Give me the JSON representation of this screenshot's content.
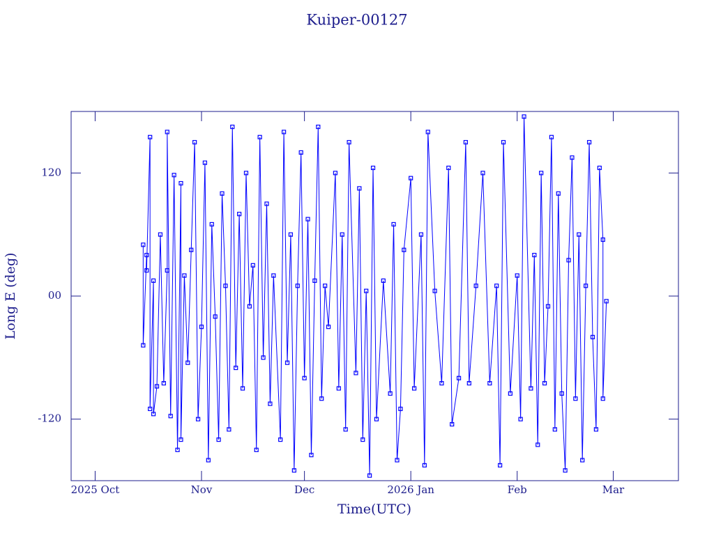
{
  "chart_data": {
    "type": "line",
    "title": "Kuiper-00127",
    "xlabel": "Time(UTC)",
    "ylabel": "Long E (deg)",
    "xlim": [
      "2025-09-24",
      "2026-03-20"
    ],
    "xticks": [
      {
        "value": "2025-10-01",
        "label": "2025 Oct"
      },
      {
        "value": "2025-11-01",
        "label": "Nov"
      },
      {
        "value": "2025-12-01",
        "label": "Dec"
      },
      {
        "value": "2026-01-01",
        "label": "2026 Jan"
      },
      {
        "value": "2026-02-01",
        "label": "Feb"
      },
      {
        "value": "2026-03-01",
        "label": "Mar"
      }
    ],
    "ylim": [
      -180,
      180
    ],
    "yticks": [
      -120,
      {
        "value": 0,
        "label": "00"
      },
      120
    ],
    "line_color": "#0000ff",
    "marker_color": "#0000ff",
    "x": [
      "2025-10-15",
      "2025-10-15",
      "2025-10-16",
      "2025-10-16",
      "2025-10-17",
      "2025-10-17",
      "2025-10-18",
      "2025-10-18",
      "2025-10-19",
      "2025-10-20",
      "2025-10-21",
      "2025-10-22",
      "2025-10-22",
      "2025-10-23",
      "2025-10-24",
      "2025-10-25",
      "2025-10-26",
      "2025-10-26",
      "2025-10-27",
      "2025-10-28",
      "2025-10-29",
      "2025-10-30",
      "2025-10-31",
      "2025-11-01",
      "2025-11-02",
      "2025-11-03",
      "2025-11-04",
      "2025-11-05",
      "2025-11-06",
      "2025-11-07",
      "2025-11-08",
      "2025-11-09",
      "2025-11-10",
      "2025-11-11",
      "2025-11-12",
      "2025-11-13",
      "2025-11-14",
      "2025-11-15",
      "2025-11-16",
      "2025-11-17",
      "2025-11-18",
      "2025-11-19",
      "2025-11-20",
      "2025-11-21",
      "2025-11-22",
      "2025-11-24",
      "2025-11-25",
      "2025-11-26",
      "2025-11-27",
      "2025-11-28",
      "2025-11-29",
      "2025-11-30",
      "2025-12-01",
      "2025-12-02",
      "2025-12-03",
      "2025-12-04",
      "2025-12-05",
      "2025-12-06",
      "2025-12-07",
      "2025-12-08",
      "2025-12-10",
      "2025-12-11",
      "2025-12-12",
      "2025-12-13",
      "2025-12-14",
      "2025-12-16",
      "2025-12-17",
      "2025-12-18",
      "2025-12-19",
      "2025-12-20",
      "2025-12-21",
      "2025-12-22",
      "2025-12-24",
      "2025-12-26",
      "2025-12-27",
      "2025-12-28",
      "2025-12-29",
      "2025-12-30",
      "2026-01-01",
      "2026-01-02",
      "2026-01-04",
      "2026-01-05",
      "2026-01-06",
      "2026-01-08",
      "2026-01-10",
      "2026-01-12",
      "2026-01-13",
      "2026-01-15",
      "2026-01-17",
      "2026-01-18",
      "2026-01-20",
      "2026-01-22",
      "2026-01-24",
      "2026-01-26",
      "2026-01-27",
      "2026-01-28",
      "2026-01-30",
      "2026-02-01",
      "2026-02-02",
      "2026-02-03",
      "2026-02-05",
      "2026-02-06",
      "2026-02-07",
      "2026-02-08",
      "2026-02-09",
      "2026-02-10",
      "2026-02-11",
      "2026-02-12",
      "2026-02-13",
      "2026-02-14",
      "2026-02-15",
      "2026-02-16",
      "2026-02-17",
      "2026-02-18",
      "2026-02-19",
      "2026-02-20",
      "2026-02-21",
      "2026-02-22",
      "2026-02-23",
      "2026-02-24",
      "2026-02-25",
      "2026-02-26",
      "2026-02-26",
      "2026-02-27"
    ],
    "values": [
      50,
      -48,
      40,
      25,
      155,
      -110,
      15,
      -115,
      -88,
      60,
      -85,
      25,
      160,
      -117,
      118,
      -150,
      110,
      -140,
      20,
      -65,
      45,
      150,
      -120,
      -30,
      130,
      -160,
      70,
      -20,
      -140,
      100,
      10,
      -130,
      165,
      -70,
      80,
      -90,
      120,
      -10,
      30,
      -150,
      155,
      -60,
      90,
      -105,
      20,
      -140,
      160,
      -65,
      60,
      -170,
      10,
      140,
      -80,
      75,
      -155,
      15,
      165,
      -100,
      10,
      -30,
      120,
      -90,
      60,
      -130,
      150,
      -75,
      105,
      -140,
      5,
      -175,
      125,
      -120,
      15,
      -95,
      70,
      -160,
      -110,
      45,
      115,
      -90,
      60,
      -165,
      160,
      5,
      -85,
      125,
      -125,
      -80,
      150,
      -85,
      10,
      120,
      -85,
      10,
      -165,
      150,
      -95,
      20,
      -120,
      175,
      -90,
      40,
      -145,
      120,
      -85,
      -10,
      155,
      -130,
      100,
      -95,
      -170,
      35,
      135,
      -100,
      60,
      -160,
      10,
      150,
      -40,
      -130,
      125,
      55,
      -100,
      -5
    ]
  }
}
